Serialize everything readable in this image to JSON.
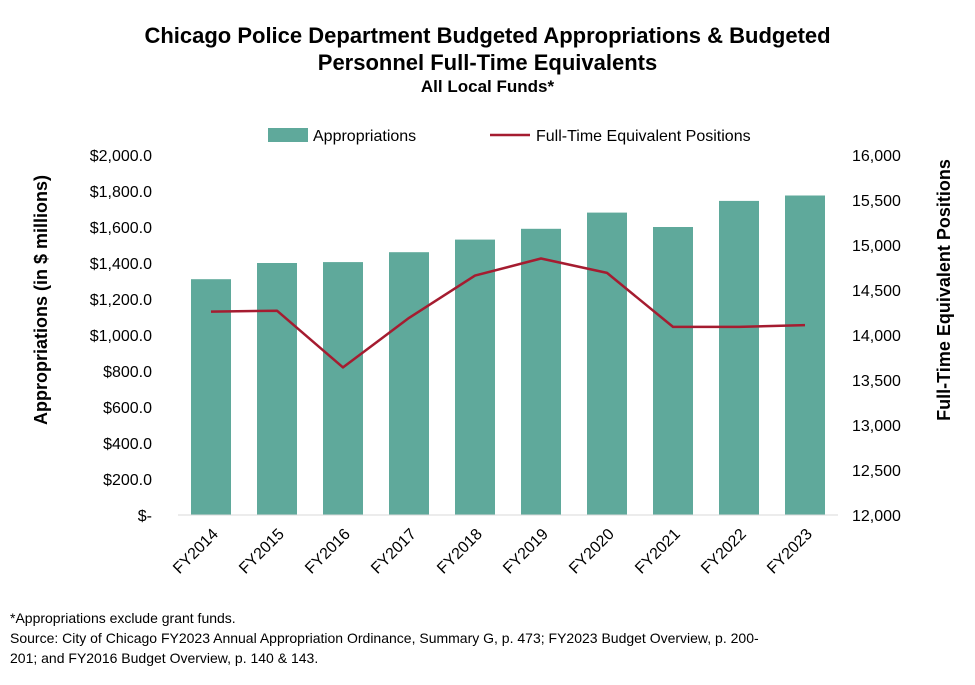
{
  "chart_data": {
    "type": "bar",
    "title_lines": [
      "Chicago Police Department Budgeted Appropriations & Budgeted",
      "Personnel Full-Time Equivalents"
    ],
    "subtitle": "All Local Funds*",
    "categories": [
      "FY2014",
      "FY2015",
      "FY2016",
      "FY2017",
      "FY2018",
      "FY2019",
      "FY2020",
      "FY2021",
      "FY2022",
      "FY2023"
    ],
    "series": [
      {
        "name": "Appropriations",
        "kind": "bar",
        "axis": "left",
        "color": "#5fa99b",
        "values": [
          1310,
          1400,
          1405,
          1460,
          1530,
          1590,
          1680,
          1600,
          1745,
          1775
        ]
      },
      {
        "name": "Full-Time Equivalent Positions",
        "kind": "line",
        "axis": "right",
        "color": "#a51c30",
        "values": [
          14260,
          14270,
          13640,
          14190,
          14660,
          14850,
          14690,
          14090,
          14090,
          14110
        ]
      }
    ],
    "ylabel": "Appropriations (in $ millions)",
    "ylabel_right": "Full-Time Equivalent Positions",
    "ylim": [
      0,
      2000
    ],
    "ylim_right": [
      12000,
      16000
    ],
    "yticks": [
      "$-",
      "$200.0",
      "$400.0",
      "$600.0",
      "$800.0",
      "$1,000.0",
      "$1,200.0",
      "$1,400.0",
      "$1,600.0",
      "$1,800.0",
      "$2,000.0"
    ],
    "yticks_right": [
      "12,000",
      "12,500",
      "13,000",
      "13,500",
      "14,000",
      "14,500",
      "15,000",
      "15,500",
      "16,000"
    ],
    "legend_position": "top",
    "grid": false
  },
  "notes": {
    "footnote": "*Appropriations exclude grant funds.",
    "source_line1": "Source: City of Chicago FY2023 Annual Appropriation Ordinance, Summary G, p. 473; FY2023 Budget Overview, p. 200-",
    "source_line2": "201; and FY2016 Budget Overview, p. 140 & 143."
  }
}
